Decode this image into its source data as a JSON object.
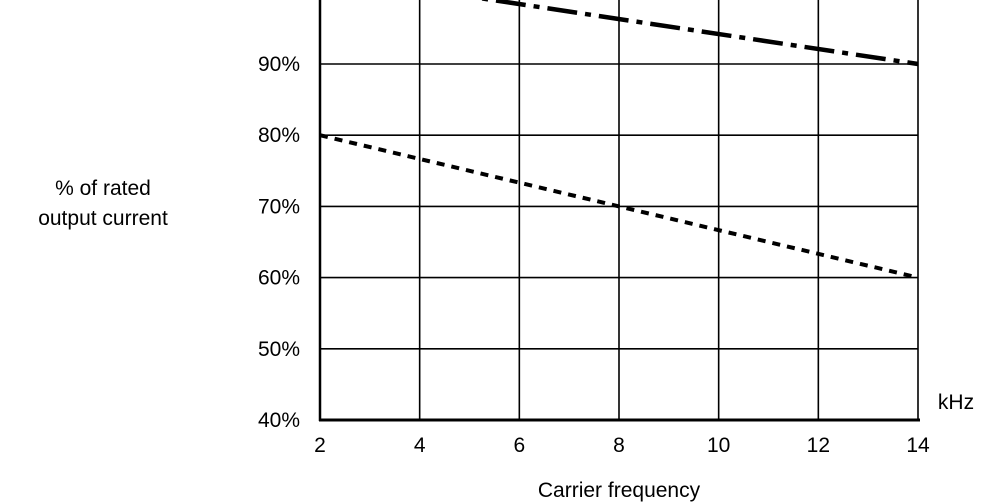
{
  "chart_data": {
    "type": "line",
    "title": "",
    "xlabel": "Carrier frequency",
    "x_unit": "kHz",
    "ylabel_lines": [
      "% of rated",
      "output current"
    ],
    "xlim": [
      2,
      14
    ],
    "ylim": [
      40,
      100
    ],
    "x_ticks": [
      2,
      4,
      6,
      8,
      10,
      12,
      14
    ],
    "x_tick_labels": [
      "2",
      "4",
      "6",
      "8",
      "10",
      "12",
      "14"
    ],
    "y_ticks": [
      40,
      50,
      60,
      70,
      80,
      90
    ],
    "y_tick_labels": [
      "40%",
      "50%",
      "60%",
      "70%",
      "80%",
      "90%"
    ],
    "grid": true,
    "series": [
      {
        "style": "dash-dot",
        "x": [
          4.5,
          14
        ],
        "y": [
          100,
          90
        ]
      },
      {
        "style": "dotted",
        "x": [
          2,
          14
        ],
        "y": [
          80,
          60
        ]
      }
    ]
  }
}
